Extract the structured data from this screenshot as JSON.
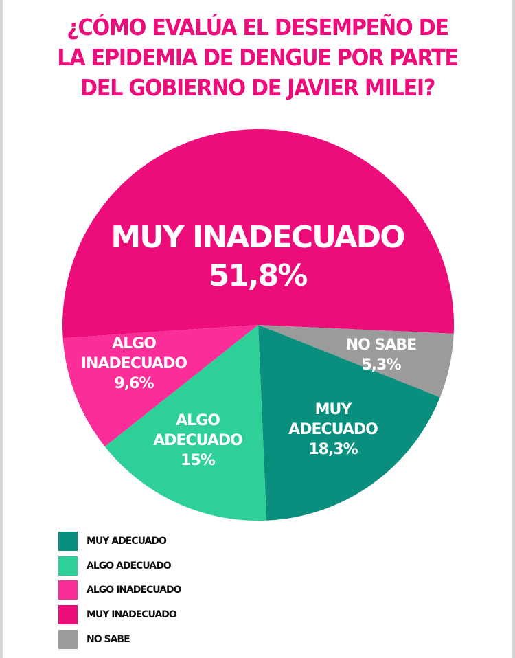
{
  "title": {
    "lines": [
      "¿CÓMO EVALÚA EL DESEMPEÑO DE",
      "LA EPIDEMIA DE DENGUE POR PARTE",
      "DEL GOBIERNO DE JAVIER MILEI?"
    ]
  },
  "slices": {
    "muy_inadecuado": {
      "label": "MUY INADECUADO",
      "value": "51,8%",
      "color": "#ec0c7a"
    },
    "no_sabe": {
      "label_lines": [
        "NO SABE"
      ],
      "value": "5,3%",
      "color": "#9b9b9b"
    },
    "muy_adecuado": {
      "label_lines": [
        "MUY",
        "ADECUADO"
      ],
      "value": "18,3%",
      "color": "#0a8f7e"
    },
    "algo_adecuado": {
      "label_lines": [
        "ALGO",
        "ADECUADO"
      ],
      "value": "15%",
      "color": "#2fcf98"
    },
    "algo_inadecuado": {
      "label_lines": [
        "ALGO",
        "INADECUADO"
      ],
      "value": "9,6%",
      "color": "#fb2d99"
    }
  },
  "legend": [
    {
      "label": "MUY ADECUADO",
      "color": "#0a8f7e"
    },
    {
      "label": "ALGO ADECUADO",
      "color": "#2fcf98"
    },
    {
      "label": "ALGO INADECUADO",
      "color": "#fb2d99"
    },
    {
      "label": "MUY INADECUADO",
      "color": "#ec0c7a"
    },
    {
      "label": "NO SABE",
      "color": "#9b9b9b"
    }
  ],
  "chart_data": {
    "type": "pie",
    "title": "¿CÓMO EVALÚA EL DESEMPEÑO DE LA EPIDEMIA DE DENGUE POR PARTE DEL GOBIERNO DE JAVIER MILEI?",
    "categories": [
      "MUY INADECUADO",
      "NO SABE",
      "MUY ADECUADO",
      "ALGO ADECUADO",
      "ALGO INADECUADO"
    ],
    "values": [
      51.8,
      5.3,
      18.3,
      15.0,
      9.6
    ],
    "unit": "%",
    "colors": [
      "#ec0c7a",
      "#9b9b9b",
      "#0a8f7e",
      "#2fcf98",
      "#fb2d99"
    ],
    "legend_order": [
      "MUY ADECUADO",
      "ALGO ADECUADO",
      "ALGO INADECUADO",
      "MUY INADECUADO",
      "NO SABE"
    ],
    "legend_position": "bottom-left"
  }
}
